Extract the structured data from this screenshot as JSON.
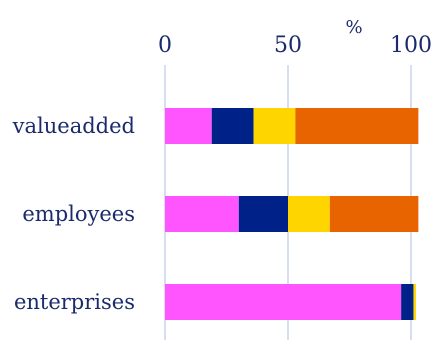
{
  "chart_data": {
    "type": "bar",
    "orientation": "horizontal",
    "stacked": true,
    "unit": "%",
    "xlim": [
      0,
      100
    ],
    "xticks": [
      0,
      50,
      100
    ],
    "grid": true,
    "categories": [
      "valueadded",
      "employees",
      "enterprises"
    ],
    "series": [
      {
        "color": "#ff55ff",
        "values": [
          19,
          30,
          96
        ]
      },
      {
        "color": "#002288",
        "values": [
          17,
          20,
          5
        ]
      },
      {
        "color": "#ffd500",
        "values": [
          17,
          17,
          1
        ]
      },
      {
        "color": "#e86400",
        "values": [
          50,
          36,
          0
        ]
      }
    ]
  }
}
